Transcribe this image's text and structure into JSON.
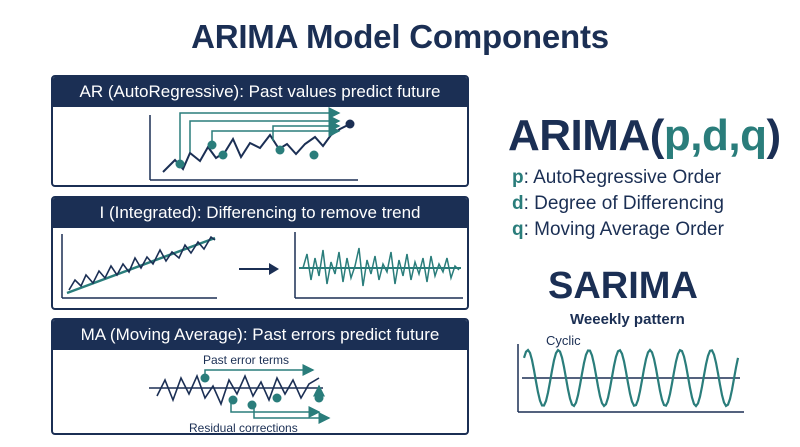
{
  "title": "ARIMA Model Components",
  "panels": {
    "ar": {
      "header": "AR (AutoRegressive): Past values predict future"
    },
    "i": {
      "header": "I (Integrated): Differencing to remove trend"
    },
    "ma": {
      "header": "MA (Moving Average): Past errors predict future",
      "label_top": "Past error terms",
      "label_bottom": "Residual corrections"
    }
  },
  "formula": {
    "prefix": "ARIMA(",
    "params": "p,d,q",
    "suffix": ")"
  },
  "parameters": [
    {
      "key": "p",
      "text": ": AutoRegressive Order"
    },
    {
      "key": "d",
      "text": ": Degree of Differencing"
    },
    {
      "key": "q",
      "text": ": Moving Average Order"
    }
  ],
  "sarima": {
    "title": "SARIMA",
    "subtitle": "Weeekly pattern",
    "cyclic_label": "Cyclic"
  },
  "colors": {
    "navy": "#1b2f54",
    "teal": "#2a7d7b"
  }
}
